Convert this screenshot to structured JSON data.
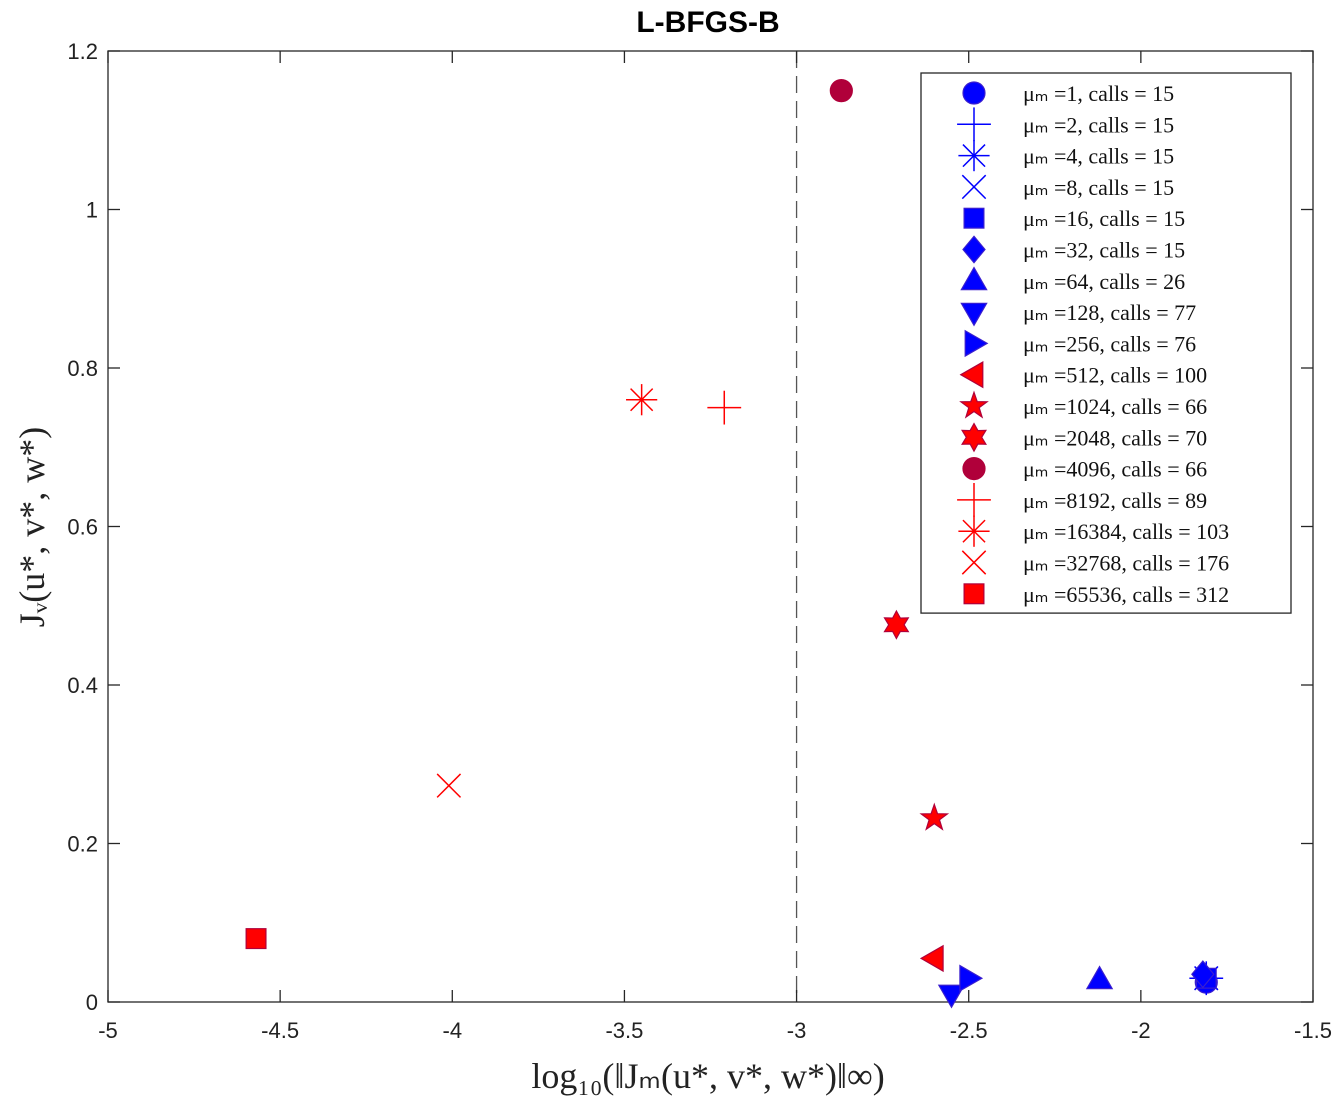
{
  "chart_data": {
    "type": "scatter",
    "title": "L-BFGS-B",
    "xlabel": "log₁₀(‖Jₘ(u*, v*, w*)‖∞)",
    "ylabel": "Jᵥ(u*, v*, w*)",
    "xlim": [
      -5,
      -1.5
    ],
    "ylim": [
      0,
      1.2
    ],
    "xticks": [
      "-5",
      "-4.5",
      "-4",
      "-3.5",
      "-3",
      "-2.5",
      "-2",
      "-1.5"
    ],
    "yticks": [
      "0",
      "0.2",
      "0.4",
      "0.6",
      "0.8",
      "1",
      "1.2"
    ],
    "grid": false,
    "legend_position": "top-right",
    "reference_line": {
      "x": -3,
      "style": "dashed"
    },
    "series": [
      {
        "name": "μₘ =1, calls = 15",
        "marker": "circle",
        "color": "#0000ff",
        "x": -1.81,
        "y": 0.025
      },
      {
        "name": "μₘ =2, calls = 15",
        "marker": "plus",
        "color": "#0000ff",
        "x": -1.81,
        "y": 0.03
      },
      {
        "name": "μₘ =4, calls = 15",
        "marker": "asterisk",
        "color": "#0000ff",
        "x": -1.81,
        "y": 0.03
      },
      {
        "name": "μₘ =8, calls = 15",
        "marker": "x",
        "color": "#0000ff",
        "x": -1.81,
        "y": 0.03
      },
      {
        "name": "μₘ =16, calls = 15",
        "marker": "square",
        "color": "#0000ff",
        "x": -1.81,
        "y": 0.03
      },
      {
        "name": "μₘ =32, calls = 15",
        "marker": "diamond",
        "color": "#0000ff",
        "x": -1.82,
        "y": 0.035
      },
      {
        "name": "μₘ =64, calls = 26",
        "marker": "triangle-up",
        "color": "#0000ff",
        "x": -2.12,
        "y": 0.028
      },
      {
        "name": "μₘ =128, calls = 77",
        "marker": "triangle-down",
        "color": "#0000ff",
        "x": -2.55,
        "y": 0.01
      },
      {
        "name": "μₘ =256, calls = 76",
        "marker": "triangle-right",
        "color": "#0000ff",
        "x": -2.5,
        "y": 0.03
      },
      {
        "name": "μₘ =512, calls = 100",
        "marker": "triangle-left",
        "color": "#ff0000",
        "x": -2.6,
        "y": 0.055
      },
      {
        "name": "μₘ =1024, calls = 66",
        "marker": "pentagram",
        "color": "#ff0000",
        "x": -2.6,
        "y": 0.232
      },
      {
        "name": "μₘ =2048, calls = 70",
        "marker": "hexagram",
        "color": "#ff0000",
        "x": -2.71,
        "y": 0.476
      },
      {
        "name": "μₘ =4096, calls = 66",
        "marker": "circle",
        "color": "#b0003a",
        "x": -2.87,
        "y": 1.15
      },
      {
        "name": "μₘ =8192, calls = 89",
        "marker": "plus",
        "color": "#ff0000",
        "x": -3.21,
        "y": 0.75
      },
      {
        "name": "μₘ =16384, calls = 103",
        "marker": "asterisk",
        "color": "#ff0000",
        "x": -3.45,
        "y": 0.76
      },
      {
        "name": "μₘ =32768, calls = 176",
        "marker": "x",
        "color": "#ff0000",
        "x": -4.01,
        "y": 0.273
      },
      {
        "name": "μₘ =65536, calls = 312",
        "marker": "square",
        "color": "#ff0000",
        "x": -4.57,
        "y": 0.08
      }
    ]
  }
}
